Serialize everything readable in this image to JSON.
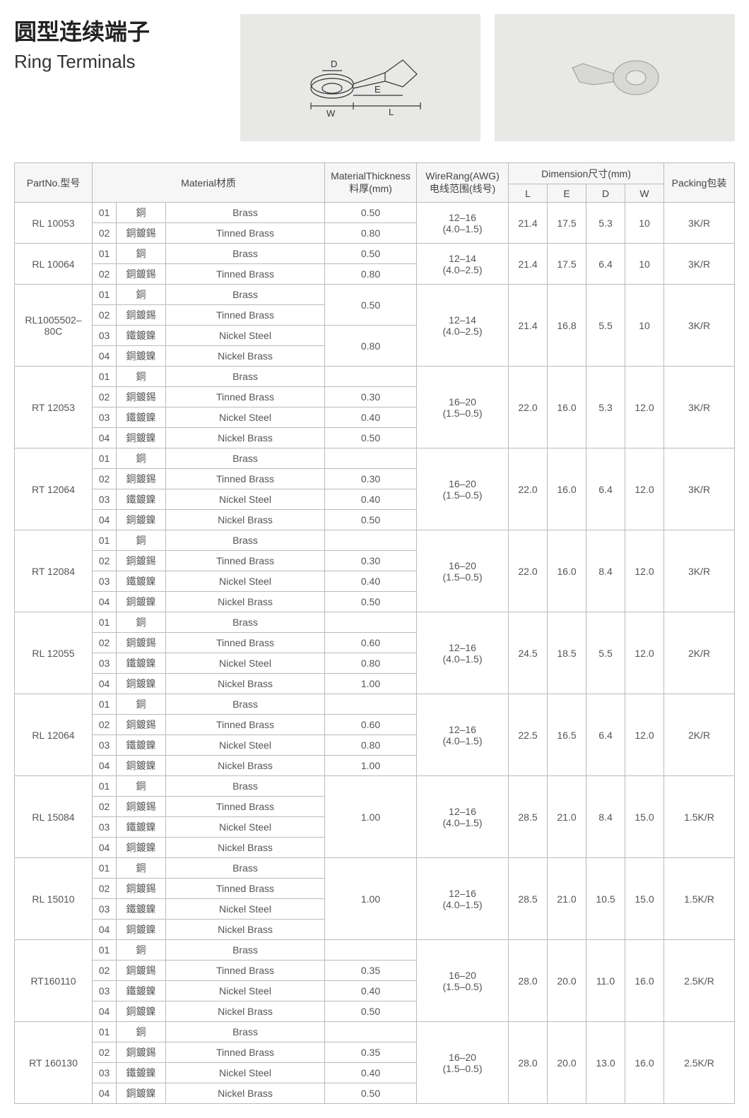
{
  "title_cn": "圆型连续端子",
  "title_en": "Ring Terminals",
  "diagram_labels": {
    "D": "D",
    "E": "E",
    "L": "L",
    "W": "W"
  },
  "headers": {
    "partno": "PartNo.型号",
    "material": "Material材质",
    "thickness_l1": "MaterialThickness",
    "thickness_l2": "料厚(mm)",
    "wire_l1": "WireRang(AWG)",
    "wire_l2": "电线范围(线号)",
    "dimension": "Dimension尺寸(mm)",
    "L": "L",
    "E": "E",
    "D": "D",
    "W": "W",
    "packing": "Packing包装"
  },
  "mat_labels": {
    "brass_cn": "銅",
    "brass_en": "Brass",
    "tinned_cn": "銅鍍錫",
    "tinned_en": "Tinned Brass",
    "nsteel_cn": "鐵鍍鎳",
    "nsteel_en": "Nickel Steel",
    "nbrass_cn": "銅鍍鎳",
    "nbrass_en": "Nickel Brass"
  },
  "rows": [
    {
      "partno": "RL 10053",
      "materials": [
        "brass",
        "tinned"
      ],
      "thickness": [
        "0.50",
        "0.80"
      ],
      "wire": "12–16\n(4.0–1.5)",
      "L": "21.4",
      "E": "17.5",
      "D": "5.3",
      "W": "10",
      "packing": "3K/R"
    },
    {
      "partno": "RL 10064",
      "materials": [
        "brass",
        "tinned"
      ],
      "thickness": [
        "0.50",
        "0.80"
      ],
      "wire": "12–14\n(4.0–2.5)",
      "L": "21.4",
      "E": "17.5",
      "D": "6.4",
      "W": "10",
      "packing": "3K/R"
    },
    {
      "partno": "RL1005502–80C",
      "materials": [
        "brass",
        "tinned",
        "nsteel",
        "nbrass"
      ],
      "thickness": [
        "0.50",
        "",
        "0.80",
        ""
      ],
      "thickspan": [
        2,
        0,
        2,
        0
      ],
      "wire": "12–14\n(4.0–2.5)",
      "L": "21.4",
      "E": "16.8",
      "D": "5.5",
      "W": "10",
      "packing": "3K/R"
    },
    {
      "partno": "RT 12053",
      "materials": [
        "brass",
        "tinned",
        "nsteel",
        "nbrass"
      ],
      "thickness": [
        "",
        "0.30",
        "0.40",
        "0.50"
      ],
      "thickspan": [
        1,
        1,
        1,
        1
      ],
      "wire": "16–20\n(1.5–0.5)",
      "L": "22.0",
      "E": "16.0",
      "D": "5.3",
      "W": "12.0",
      "packing": "3K/R"
    },
    {
      "partno": "RT 12064",
      "materials": [
        "brass",
        "tinned",
        "nsteel",
        "nbrass"
      ],
      "thickness": [
        "",
        "0.30",
        "0.40",
        "0.50"
      ],
      "thickspan": [
        1,
        1,
        1,
        1
      ],
      "wire": "16–20\n(1.5–0.5)",
      "L": "22.0",
      "E": "16.0",
      "D": "6.4",
      "W": "12.0",
      "packing": "3K/R"
    },
    {
      "partno": "RT 12084",
      "materials": [
        "brass",
        "tinned",
        "nsteel",
        "nbrass"
      ],
      "thickness": [
        "",
        "0.30",
        "0.40",
        "0.50"
      ],
      "thickspan": [
        1,
        1,
        1,
        1
      ],
      "wire": "16–20\n(1.5–0.5)",
      "L": "22.0",
      "E": "16.0",
      "D": "8.4",
      "W": "12.0",
      "packing": "3K/R"
    },
    {
      "partno": "RL 12055",
      "materials": [
        "brass",
        "tinned",
        "nsteel",
        "nbrass"
      ],
      "thickness": [
        "",
        "0.60",
        "0.80",
        "1.00"
      ],
      "thickspan": [
        1,
        1,
        1,
        1
      ],
      "wire": "12–16\n(4.0–1.5)",
      "L": "24.5",
      "E": "18.5",
      "D": "5.5",
      "W": "12.0",
      "packing": "2K/R"
    },
    {
      "partno": "RL 12064",
      "materials": [
        "brass",
        "tinned",
        "nsteel",
        "nbrass"
      ],
      "thickness": [
        "",
        "0.60",
        "0.80",
        "1.00"
      ],
      "thickspan": [
        1,
        1,
        1,
        1
      ],
      "wire": "12–16\n(4.0–1.5)",
      "L": "22.5",
      "E": "16.5",
      "D": "6.4",
      "W": "12.0",
      "packing": "2K/R"
    },
    {
      "partno": "RL 15084",
      "materials": [
        "brass",
        "tinned",
        "nsteel",
        "nbrass"
      ],
      "thickness": [
        "",
        "",
        "1.00",
        ""
      ],
      "thickspan": [
        4,
        0,
        0,
        0
      ],
      "thicksingle": "1.00",
      "wire": "12–16\n(4.0–1.5)",
      "L": "28.5",
      "E": "21.0",
      "D": "8.4",
      "W": "15.0",
      "packing": "1.5K/R"
    },
    {
      "partno": "RL 15010",
      "materials": [
        "brass",
        "tinned",
        "nsteel",
        "nbrass"
      ],
      "thicksingle": "1.00",
      "thickspan": [
        4,
        0,
        0,
        0
      ],
      "wire": "12–16\n(4.0–1.5)",
      "L": "28.5",
      "E": "21.0",
      "D": "10.5",
      "W": "15.0",
      "packing": "1.5K/R"
    },
    {
      "partno": "RT160110",
      "materials": [
        "brass",
        "tinned",
        "nsteel",
        "nbrass"
      ],
      "thickness": [
        "",
        "0.35",
        "0.40",
        "0.50"
      ],
      "thickspan": [
        1,
        1,
        1,
        1
      ],
      "wire": "16–20\n(1.5–0.5)",
      "L": "28.0",
      "E": "20.0",
      "D": "11.0",
      "W": "16.0",
      "packing": "2.5K/R"
    },
    {
      "partno": "RT 160130",
      "materials": [
        "brass",
        "tinned",
        "nsteel",
        "nbrass"
      ],
      "thickness": [
        "",
        "0.35",
        "0.40",
        "0.50"
      ],
      "thickspan": [
        1,
        1,
        1,
        1
      ],
      "wire": "16–20\n(1.5–0.5)",
      "L": "28.0",
      "E": "20.0",
      "D": "13.0",
      "W": "16.0",
      "packing": "2.5K/R"
    }
  ],
  "colors": {
    "border": "#bbbbbb",
    "header_bg": "#f6f6f6",
    "text": "#555555",
    "img_bg": "#e8e8e6"
  }
}
